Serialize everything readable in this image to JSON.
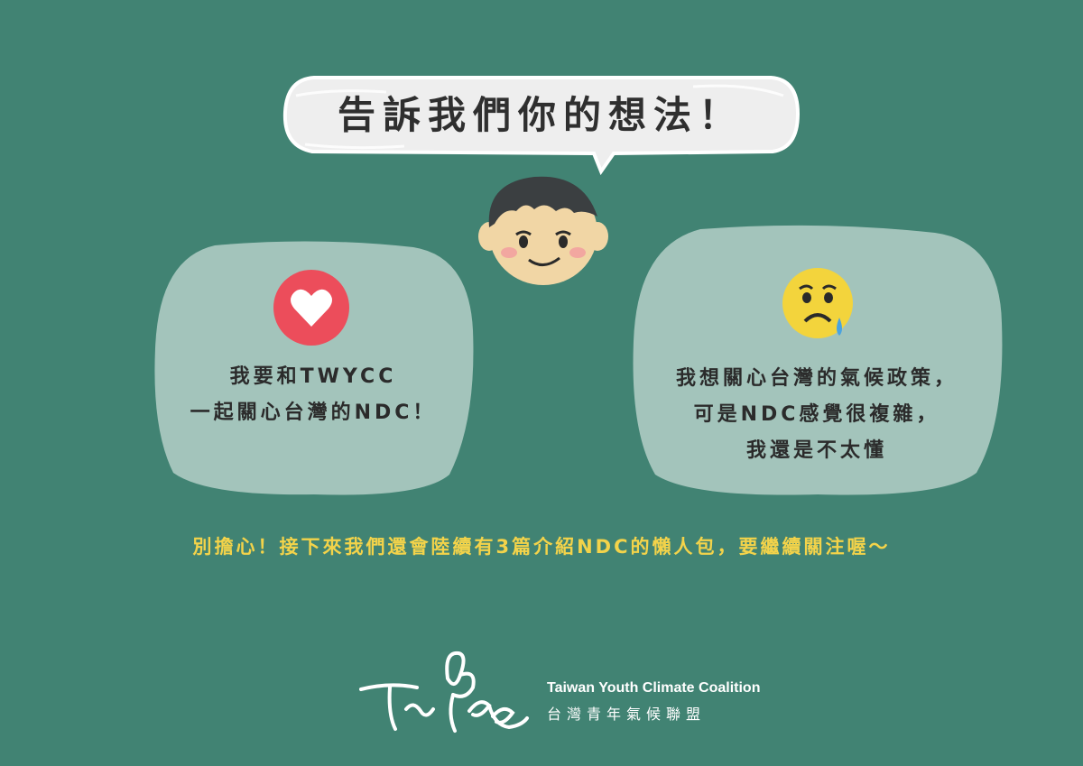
{
  "speech_bubble": {
    "text": "告訴我們你的想法！"
  },
  "face": {
    "icon": "smiling-boy-face-icon"
  },
  "card_left": {
    "icon": "heart-icon",
    "lines": [
      "我要和TWYCC",
      "一起關心台灣的NDC！"
    ]
  },
  "card_right": {
    "icon": "sad-crying-face-icon",
    "lines": [
      "我想關心台灣的氣候政策，",
      "可是NDC感覺很複雜，",
      "我還是不太懂"
    ]
  },
  "notice": "別擔心！接下來我們還會陸續有3篇介紹NDC的懶人包，要繼續關注喔～",
  "organization": {
    "name_en": "Taiwan Youth Climate Coalition",
    "name_zh": "台灣青年氣候聯盟",
    "logo_icon": "twycc-signature-logo-icon"
  },
  "colors": {
    "background": "#418373",
    "bubble": "#eeeeee",
    "card": "#a3c4bb",
    "heart_circle": "#ec4d5b",
    "sad_face": "#f3d43c",
    "notice_text": "#f3d34a"
  }
}
